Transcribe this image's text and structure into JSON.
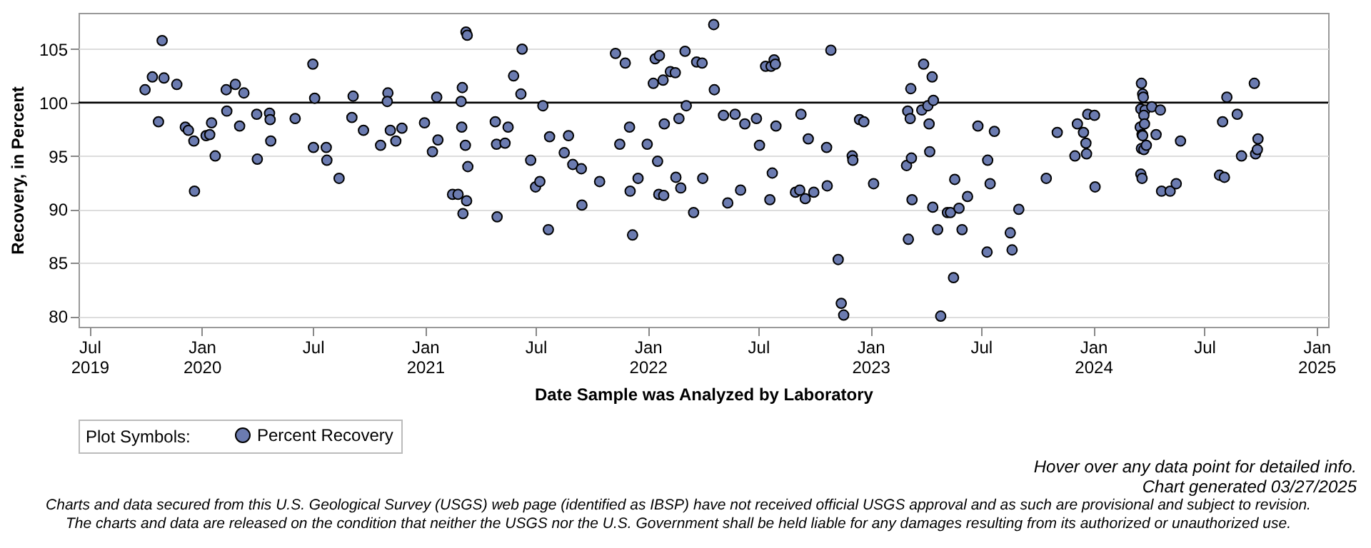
{
  "chart_data": {
    "type": "scatter",
    "xlabel": "Date Sample was Analyzed by Laboratory",
    "ylabel": "Recovery, in Percent",
    "legend_title": "Plot Symbols:",
    "legend": "bottom",
    "marker": "circle",
    "grid": "y",
    "xlim": [
      "2019-06-13",
      "2025-01-20"
    ],
    "ylim": [
      79,
      108.4
    ],
    "yticks": [
      80,
      85,
      90,
      95,
      100,
      105
    ],
    "xticks": [
      {
        "value": "2019-07-01",
        "label": "Jul\n2019"
      },
      {
        "value": "2020-01-01",
        "label": "Jan\n2020"
      },
      {
        "value": "2020-07-01",
        "label": "Jul"
      },
      {
        "value": "2021-01-01",
        "label": "Jan\n2021"
      },
      {
        "value": "2021-07-01",
        "label": "Jul"
      },
      {
        "value": "2022-01-01",
        "label": "Jan\n2022"
      },
      {
        "value": "2022-07-01",
        "label": "Jul"
      },
      {
        "value": "2023-01-01",
        "label": "Jan\n2023"
      },
      {
        "value": "2023-07-01",
        "label": "Jul"
      },
      {
        "value": "2024-01-01",
        "label": "Jan\n2024"
      },
      {
        "value": "2024-07-01",
        "label": "Jul"
      },
      {
        "value": "2025-01-01",
        "label": "Jan\n2025"
      }
    ],
    "ref_lines": [
      {
        "axis": "y",
        "value": 100,
        "color": "#000000"
      }
    ],
    "annotations": [
      "Hover over any data point for detailed info.",
      "Chart generated 03/27/2025",
      "Charts and data secured from this U.S. Geological Survey (USGS) web page (identified as IBSP) have not received official USGS approval and as such are provisional and subject to revision.",
      "The charts and data are released on the condition that neither the USGS nor the U.S. Government shall be held liable for any damages resulting from its authorized or unauthorized use."
    ],
    "series": [
      {
        "name": "Percent Recovery",
        "color": "#6b7bb0",
        "x": [
          "2019-09-30",
          "2019-10-12",
          "2019-10-28",
          "2019-10-22",
          "2019-10-31",
          "2019-11-21",
          "2019-12-05",
          "2019-12-10",
          "2019-12-19",
          "2019-12-20",
          "2020-01-08",
          "2020-01-14",
          "2020-01-17",
          "2020-01-23",
          "2020-02-10",
          "2020-02-11",
          "2020-02-25",
          "2020-03-03",
          "2020-03-10",
          "2020-03-31",
          "2020-04-01",
          "2020-04-21",
          "2020-04-22",
          "2020-04-23",
          "2020-06-02",
          "2020-07-01",
          "2020-07-04",
          "2020-07-02",
          "2020-07-23",
          "2020-07-24",
          "2020-08-13",
          "2020-09-03",
          "2020-09-05",
          "2020-09-22",
          "2020-10-20",
          "2020-11-01",
          "2020-10-31",
          "2020-11-05",
          "2020-11-14",
          "2020-11-24",
          "2020-12-31",
          "2021-01-13",
          "2021-01-20",
          "2021-01-22",
          "2021-02-15",
          "2021-02-24",
          "2021-03-01",
          "2021-03-03",
          "2021-03-02",
          "2021-03-08",
          "2021-03-10",
          "2021-03-04",
          "2021-03-12",
          "2021-03-09",
          "2021-03-11",
          "2021-04-26",
          "2021-04-28",
          "2021-04-29",
          "2021-05-12",
          "2021-05-17",
          "2021-05-26",
          "2021-06-07",
          "2021-06-09",
          "2021-06-23",
          "2021-07-01",
          "2021-07-08",
          "2021-07-13",
          "2021-07-22",
          "2021-07-24",
          "2021-08-17",
          "2021-08-24",
          "2021-08-31",
          "2021-09-14",
          "2021-09-15",
          "2021-10-14",
          "2021-11-09",
          "2021-11-16",
          "2021-11-25",
          "2021-12-02",
          "2021-12-03",
          "2021-12-07",
          "2021-12-16",
          "2021-12-31",
          "2022-01-10",
          "2022-01-13",
          "2022-01-20",
          "2022-01-17",
          "2022-01-19",
          "2022-01-27",
          "2022-01-26",
          "2022-01-28",
          "2022-02-07",
          "2022-02-15",
          "2022-02-16",
          "2022-02-21",
          "2022-02-24",
          "2022-03-03",
          "2022-03-05",
          "2022-03-17",
          "2022-03-22",
          "2022-03-31",
          "2022-04-01",
          "2022-04-19",
          "2022-04-20",
          "2022-05-05",
          "2022-05-12",
          "2022-05-24",
          "2022-06-02",
          "2022-06-09",
          "2022-06-28",
          "2022-07-03",
          "2022-07-13",
          "2022-07-22",
          "2022-07-27",
          "2022-07-29",
          "2022-07-24",
          "2022-07-20",
          "2022-07-30",
          "2022-08-31",
          "2022-09-07",
          "2022-09-09",
          "2022-09-16",
          "2022-09-21",
          "2022-09-30",
          "2022-10-21",
          "2022-10-22",
          "2022-10-28",
          "2022-11-09",
          "2022-11-14",
          "2022-11-18",
          "2022-12-02",
          "2022-12-03",
          "2022-12-14",
          "2022-12-21",
          "2023-01-06",
          "2023-03-01",
          "2023-03-03",
          "2023-03-04",
          "2023-03-08",
          "2023-03-07",
          "2023-03-09",
          "2023-03-10",
          "2023-03-29",
          "2023-03-26",
          "2023-04-05",
          "2023-04-14",
          "2023-04-12",
          "2023-04-07",
          "2023-04-08",
          "2023-04-13",
          "2023-04-21",
          "2023-04-26",
          "2023-05-07",
          "2023-05-12",
          "2023-05-17",
          "2023-05-19",
          "2023-05-26",
          "2023-05-31",
          "2023-06-09",
          "2023-06-26",
          "2023-07-12",
          "2023-07-11",
          "2023-07-16",
          "2023-07-23",
          "2023-08-18",
          "2023-08-21",
          "2023-09-01",
          "2023-10-16",
          "2023-11-03",
          "2023-12-02",
          "2023-12-06",
          "2023-12-16",
          "2023-12-20",
          "2023-12-21",
          "2023-12-23",
          "2024-01-03",
          "2024-01-04",
          "2024-03-20",
          "2024-03-22",
          "2024-03-23",
          "2024-03-19",
          "2024-03-26",
          "2024-03-24",
          "2024-03-18",
          "2024-03-25",
          "2024-03-21",
          "2024-03-22",
          "2024-03-20",
          "2024-03-24",
          "2024-03-28",
          "2024-03-19",
          "2024-03-21",
          "2024-04-06",
          "2024-04-20",
          "2024-04-13",
          "2024-04-22",
          "2024-05-06",
          "2024-05-16",
          "2024-05-23",
          "2024-07-26",
          "2024-08-03",
          "2024-07-31",
          "2024-08-07",
          "2024-08-24",
          "2024-08-31",
          "2024-09-21",
          "2024-09-23",
          "2024-09-26",
          "2024-09-27"
        ],
        "values": [
          101.2,
          102.4,
          105.8,
          98.2,
          102.3,
          101.7,
          97.7,
          97.4,
          96.4,
          91.7,
          96.9,
          97.0,
          98.1,
          95.0,
          101.2,
          99.2,
          101.7,
          97.8,
          100.9,
          98.9,
          94.7,
          99.0,
          98.4,
          96.4,
          98.5,
          103.6,
          100.4,
          95.8,
          95.8,
          94.6,
          92.9,
          98.6,
          100.6,
          97.4,
          96.0,
          100.9,
          100.1,
          97.4,
          96.4,
          97.6,
          98.1,
          95.4,
          100.5,
          96.5,
          91.4,
          91.4,
          100.1,
          101.4,
          97.7,
          96.0,
          90.8,
          89.6,
          94.0,
          106.6,
          106.3,
          98.2,
          96.1,
          89.3,
          96.2,
          97.7,
          102.5,
          100.8,
          105.0,
          94.6,
          92.1,
          92.6,
          99.7,
          88.1,
          96.8,
          95.3,
          96.9,
          94.2,
          93.8,
          90.4,
          92.6,
          104.6,
          96.1,
          103.7,
          97.7,
          91.7,
          87.6,
          92.9,
          96.1,
          101.8,
          104.1,
          104.4,
          94.5,
          91.4,
          91.3,
          102.1,
          98.0,
          102.9,
          102.8,
          93.0,
          98.5,
          92.0,
          104.8,
          99.7,
          89.7,
          103.8,
          103.7,
          92.9,
          107.3,
          101.2,
          98.8,
          90.6,
          98.9,
          91.8,
          98.0,
          98.5,
          96.0,
          103.4,
          103.4,
          104.0,
          103.6,
          93.4,
          90.9,
          97.8,
          91.6,
          91.8,
          98.9,
          91.0,
          96.6,
          91.6,
          95.8,
          92.2,
          104.9,
          85.3,
          81.2,
          80.1,
          95.0,
          94.6,
          98.4,
          98.2,
          92.4,
          94.1,
          99.2,
          87.2,
          101.3,
          98.5,
          94.8,
          90.9,
          103.6,
          99.3,
          99.7,
          100.2,
          102.4,
          98.0,
          95.4,
          90.2,
          88.1,
          80.0,
          89.7,
          89.7,
          83.6,
          92.8,
          90.1,
          88.1,
          91.2,
          97.8,
          94.6,
          86.0,
          92.4,
          97.3,
          87.8,
          86.2,
          90.0,
          92.9,
          97.2,
          95.0,
          98.0,
          97.2,
          96.2,
          95.2,
          98.9,
          98.8,
          92.1,
          101.8,
          100.8,
          100.5,
          99.4,
          99.3,
          98.8,
          97.7,
          98.0,
          97.0,
          96.9,
          95.7,
          95.6,
          96.0,
          93.3,
          92.9,
          99.6,
          99.3,
          97.0,
          91.7,
          91.7,
          92.4,
          96.4,
          93.2,
          93.0,
          98.2,
          100.5,
          98.9,
          95.0,
          101.8,
          95.2,
          95.6,
          96.6
        ]
      }
    ]
  }
}
